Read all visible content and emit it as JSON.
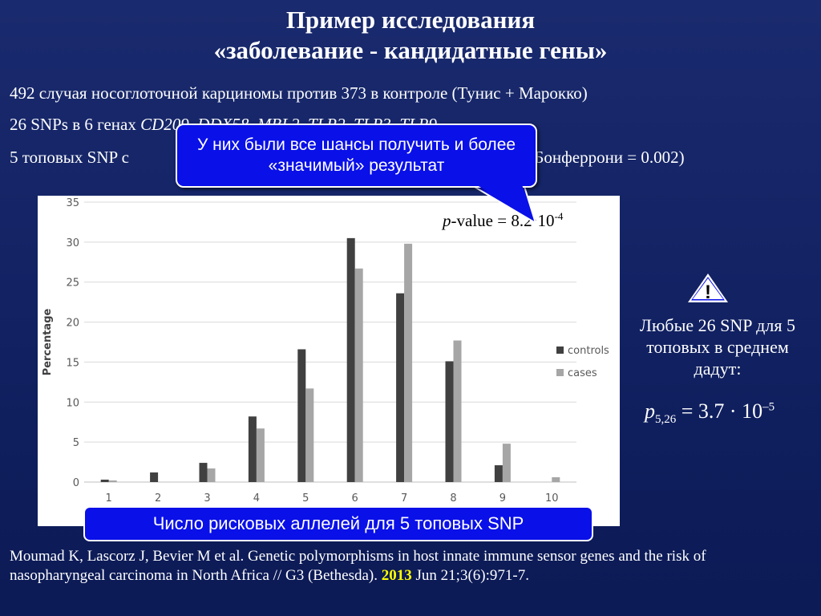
{
  "slide": {
    "title_line1": "Пример исследования",
    "title_line2": "«заболевание - кандидатные гены»",
    "line1": "492 случая носоглоточной карциномы против 373 в контроле (Тунис + Марокко)",
    "line2_prefix": "26 SNPs в 6 генах",
    "line2_genes": [
      "CD209",
      "DDX58",
      "MBL2",
      "TLR2",
      "TLR3",
      "TLR9"
    ],
    "line3_prefix": "5 топовых SNP с",
    "line3_suffix": "рог Бонферрони = 0.002)",
    "callout": "У них были все шансы получить и более «значимый» результат",
    "pvalue_label": "-value = 8.2·10",
    "pvalue_p": "p",
    "pvalue_exp": "-4",
    "xaxis_caption": "Число рисковых аллелей для 5 топовых SNP",
    "side_text": "Любые 26 SNP для 5 топовых в среднем дадут:",
    "formula_p": "p",
    "formula_sub": "5,26",
    "formula_body": " = 3.7 · 10",
    "formula_exp": "–5",
    "ref_part1": "Moumad K, Lascorz J, Bevier M et al. Genetic polymorphisms in host innate immune sensor genes and the risk of nasopharyngeal carcinoma in North Africa // G3 (Bethesda). ",
    "ref_year": "2013",
    "ref_part2": " Jun 21;3(6):971-7.",
    "warning_icon": "warning-triangle-icon"
  },
  "colors": {
    "background": "#14246a",
    "callout_fill": "#0a10e8",
    "controls": "#404040",
    "cases": "#a6a6a6",
    "year": "#ffff00"
  },
  "chart_data": {
    "type": "bar",
    "categories": [
      "1",
      "2",
      "3",
      "4",
      "5",
      "6",
      "7",
      "8",
      "9",
      "10"
    ],
    "series": [
      {
        "name": "controls",
        "values": [
          0.3,
          1.2,
          2.4,
          8.2,
          16.6,
          30.5,
          23.6,
          15.1,
          2.1,
          0
        ]
      },
      {
        "name": "cases",
        "values": [
          0.2,
          0,
          1.7,
          6.7,
          11.7,
          26.7,
          29.8,
          17.7,
          4.8,
          0.6
        ]
      }
    ],
    "ylabel": "Percentage",
    "xlabel": "",
    "ylim": [
      0,
      35
    ],
    "yticks": [
      0,
      5,
      10,
      15,
      20,
      25,
      30,
      35
    ],
    "grid": true,
    "legend_position": "right"
  }
}
